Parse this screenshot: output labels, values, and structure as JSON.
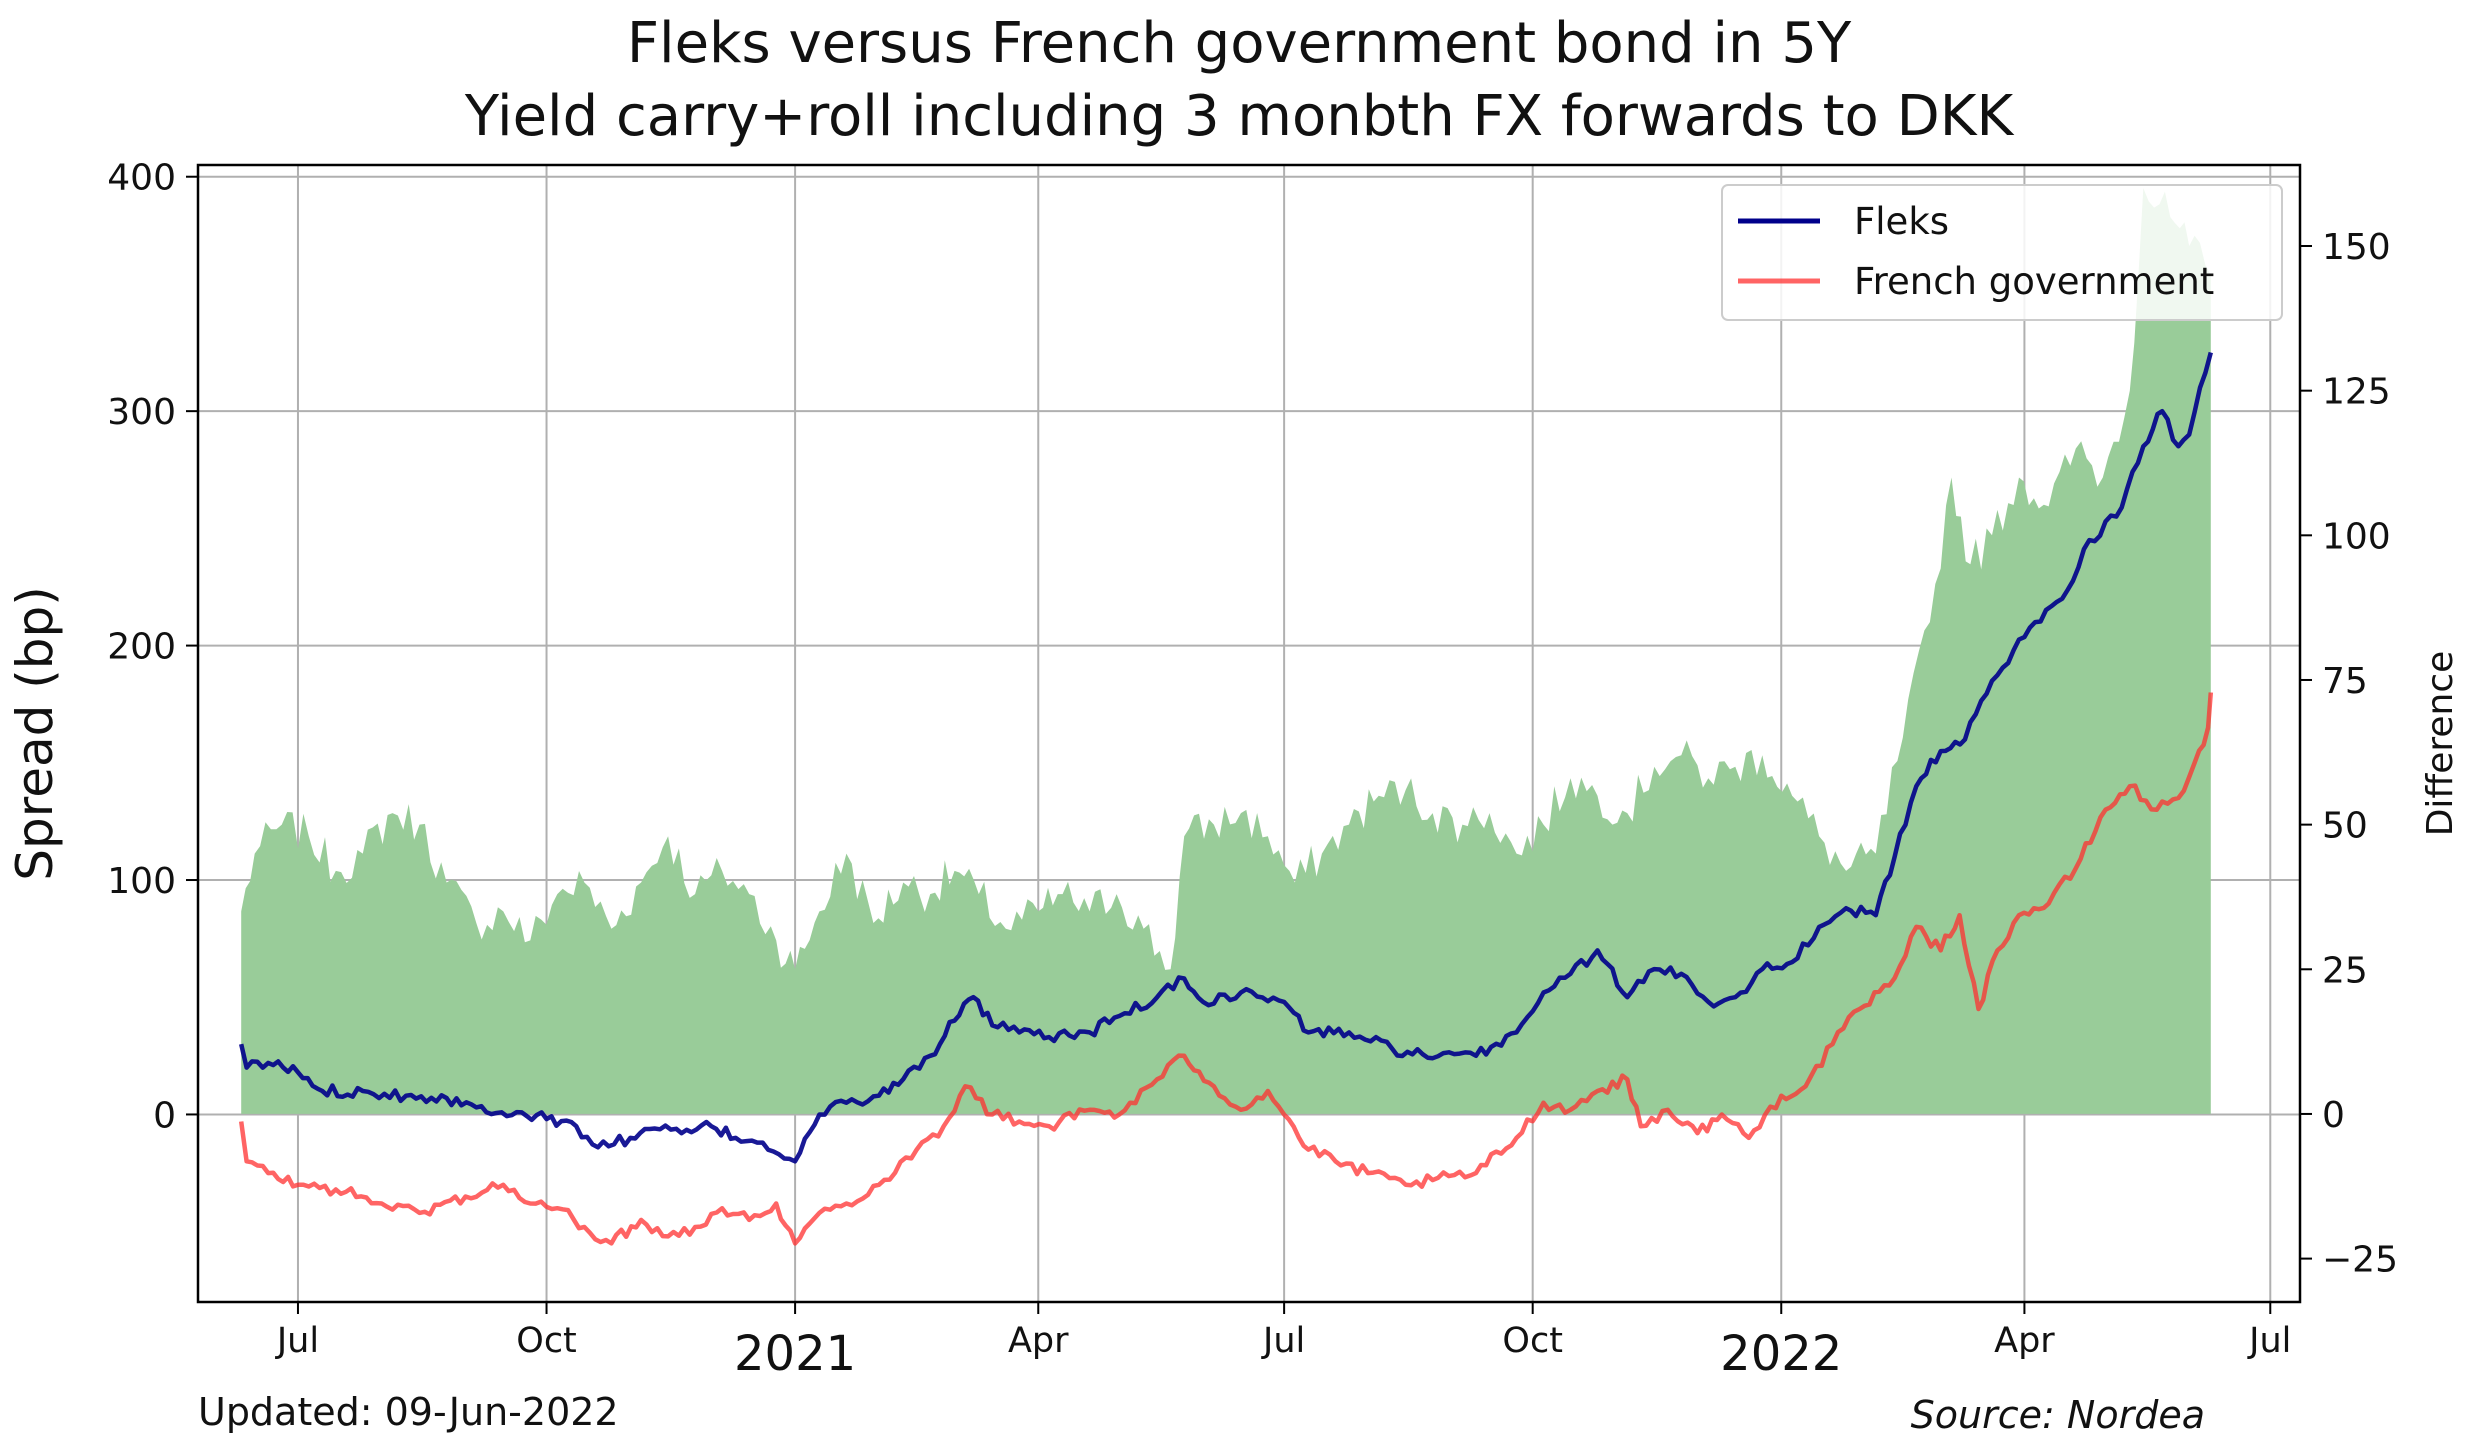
{
  "chart_data": {
    "type": "line",
    "title_line1": "Fleks versus French government bond in 5Y",
    "title_line2": "Yield carry+roll including 3 monbth FX forwards to DKK",
    "ylabel": "Spread (bp)",
    "y2label": "Difference",
    "ylim": [
      -80,
      405
    ],
    "y2lim": [
      -32.5,
      164
    ],
    "y_ticks": [
      0,
      100,
      200,
      300,
      400
    ],
    "y2_ticks": [
      -25,
      0,
      25,
      50,
      75,
      100,
      125,
      150
    ],
    "x_range": [
      "2020-05-25",
      "2022-07-12"
    ],
    "x_ticks": [
      {
        "date": "2020-07-01",
        "label": "Jul",
        "major": false
      },
      {
        "date": "2020-10-01",
        "label": "Oct",
        "major": false
      },
      {
        "date": "2021-01-01",
        "label": "2021",
        "major": true
      },
      {
        "date": "2021-04-01",
        "label": "Apr",
        "major": false
      },
      {
        "date": "2021-07-01",
        "label": "Jul",
        "major": false
      },
      {
        "date": "2021-10-01",
        "label": "Oct",
        "major": false
      },
      {
        "date": "2022-01-01",
        "label": "2022",
        "major": true
      },
      {
        "date": "2022-04-01",
        "label": "Apr",
        "major": false
      },
      {
        "date": "2022-07-01",
        "label": "Jul",
        "major": false
      }
    ],
    "grid": true,
    "legend_position": "top-right",
    "series": [
      {
        "name": "Fleks",
        "color": "#00008b",
        "axis": "left",
        "points": [
          [
            "2020-06-10",
            30
          ],
          [
            "2020-06-12",
            20
          ],
          [
            "2020-06-20",
            22
          ],
          [
            "2020-07-01",
            18
          ],
          [
            "2020-07-10",
            10
          ],
          [
            "2020-07-25",
            10
          ],
          [
            "2020-08-10",
            8
          ],
          [
            "2020-08-25",
            7
          ],
          [
            "2020-09-05",
            3
          ],
          [
            "2020-09-20",
            1
          ],
          [
            "2020-10-01",
            -2
          ],
          [
            "2020-10-12",
            -5
          ],
          [
            "2020-10-20",
            -14
          ],
          [
            "2020-11-01",
            -10
          ],
          [
            "2020-11-10",
            -6
          ],
          [
            "2020-11-20",
            -8
          ],
          [
            "2020-12-01",
            -5
          ],
          [
            "2020-12-10",
            -10
          ],
          [
            "2020-12-20",
            -12
          ],
          [
            "2021-01-01",
            -20
          ],
          [
            "2021-01-10",
            0
          ],
          [
            "2021-01-20",
            5
          ],
          [
            "2021-02-01",
            8
          ],
          [
            "2021-02-10",
            15
          ],
          [
            "2021-02-20",
            25
          ],
          [
            "2021-03-01",
            40
          ],
          [
            "2021-03-08",
            50
          ],
          [
            "2021-03-15",
            38
          ],
          [
            "2021-03-25",
            35
          ],
          [
            "2021-04-05",
            33
          ],
          [
            "2021-04-20",
            35
          ],
          [
            "2021-05-01",
            42
          ],
          [
            "2021-05-15",
            50
          ],
          [
            "2021-05-25",
            58
          ],
          [
            "2021-06-01",
            48
          ],
          [
            "2021-06-15",
            52
          ],
          [
            "2021-07-01",
            48
          ],
          [
            "2021-07-10",
            35
          ],
          [
            "2021-07-25",
            35
          ],
          [
            "2021-08-10",
            28
          ],
          [
            "2021-08-25",
            24
          ],
          [
            "2021-09-10",
            25
          ],
          [
            "2021-09-25",
            35
          ],
          [
            "2021-10-05",
            52
          ],
          [
            "2021-10-15",
            60
          ],
          [
            "2021-10-25",
            70
          ],
          [
            "2021-11-05",
            50
          ],
          [
            "2021-11-15",
            62
          ],
          [
            "2021-11-25",
            60
          ],
          [
            "2021-12-05",
            48
          ],
          [
            "2021-12-15",
            50
          ],
          [
            "2021-12-25",
            62
          ],
          [
            "2022-01-05",
            65
          ],
          [
            "2022-01-15",
            80
          ],
          [
            "2022-01-25",
            88
          ],
          [
            "2022-02-05",
            85
          ],
          [
            "2022-02-12",
            110
          ],
          [
            "2022-02-20",
            140
          ],
          [
            "2022-03-01",
            155
          ],
          [
            "2022-03-10",
            160
          ],
          [
            "2022-03-20",
            185
          ],
          [
            "2022-03-28",
            198
          ],
          [
            "2022-04-05",
            210
          ],
          [
            "2022-04-15",
            220
          ],
          [
            "2022-04-25",
            245
          ],
          [
            "2022-05-05",
            255
          ],
          [
            "2022-05-15",
            285
          ],
          [
            "2022-05-22",
            300
          ],
          [
            "2022-05-28",
            285
          ],
          [
            "2022-06-01",
            290
          ],
          [
            "2022-06-05",
            310
          ],
          [
            "2022-06-09",
            325
          ]
        ]
      },
      {
        "name": "French government",
        "color": "#ff3030",
        "axis": "left",
        "points": [
          [
            "2020-06-10",
            -3
          ],
          [
            "2020-06-12",
            -20
          ],
          [
            "2020-06-20",
            -25
          ],
          [
            "2020-07-01",
            -30
          ],
          [
            "2020-07-15",
            -32
          ],
          [
            "2020-08-01",
            -38
          ],
          [
            "2020-08-15",
            -42
          ],
          [
            "2020-09-01",
            -35
          ],
          [
            "2020-09-15",
            -30
          ],
          [
            "2020-09-25",
            -38
          ],
          [
            "2020-10-05",
            -40
          ],
          [
            "2020-10-15",
            -48
          ],
          [
            "2020-10-25",
            -55
          ],
          [
            "2020-11-05",
            -45
          ],
          [
            "2020-11-15",
            -52
          ],
          [
            "2020-11-25",
            -48
          ],
          [
            "2020-12-05",
            -40
          ],
          [
            "2020-12-15",
            -45
          ],
          [
            "2020-12-25",
            -38
          ],
          [
            "2021-01-01",
            -55
          ],
          [
            "2021-01-10",
            -42
          ],
          [
            "2021-01-20",
            -38
          ],
          [
            "2021-02-01",
            -30
          ],
          [
            "2021-02-15",
            -15
          ],
          [
            "2021-02-25",
            -5
          ],
          [
            "2021-03-05",
            12
          ],
          [
            "2021-03-15",
            0
          ],
          [
            "2021-03-25",
            -3
          ],
          [
            "2021-04-05",
            -5
          ],
          [
            "2021-04-20",
            2
          ],
          [
            "2021-05-01",
            0
          ],
          [
            "2021-05-15",
            15
          ],
          [
            "2021-05-25",
            25
          ],
          [
            "2021-06-05",
            12
          ],
          [
            "2021-06-15",
            2
          ],
          [
            "2021-06-25",
            10
          ],
          [
            "2021-07-01",
            0
          ],
          [
            "2021-07-10",
            -15
          ],
          [
            "2021-07-20",
            -20
          ],
          [
            "2021-08-01",
            -25
          ],
          [
            "2021-08-15",
            -30
          ],
          [
            "2021-08-25",
            -28
          ],
          [
            "2021-09-10",
            -25
          ],
          [
            "2021-09-25",
            -10
          ],
          [
            "2021-10-05",
            5
          ],
          [
            "2021-10-15",
            2
          ],
          [
            "2021-10-25",
            10
          ],
          [
            "2021-11-05",
            15
          ],
          [
            "2021-11-10",
            -5
          ],
          [
            "2021-11-20",
            2
          ],
          [
            "2021-12-01",
            -8
          ],
          [
            "2021-12-10",
            0
          ],
          [
            "2021-12-20",
            -10
          ],
          [
            "2022-01-01",
            8
          ],
          [
            "2022-01-10",
            12
          ],
          [
            "2022-01-20",
            30
          ],
          [
            "2022-01-30",
            45
          ],
          [
            "2022-02-10",
            55
          ],
          [
            "2022-02-20",
            80
          ],
          [
            "2022-03-01",
            70
          ],
          [
            "2022-03-08",
            85
          ],
          [
            "2022-03-15",
            45
          ],
          [
            "2022-03-22",
            70
          ],
          [
            "2022-03-30",
            85
          ],
          [
            "2022-04-10",
            90
          ],
          [
            "2022-04-20",
            105
          ],
          [
            "2022-05-01",
            130
          ],
          [
            "2022-05-10",
            140
          ],
          [
            "2022-05-20",
            130
          ],
          [
            "2022-05-28",
            135
          ],
          [
            "2022-06-03",
            150
          ],
          [
            "2022-06-08",
            165
          ],
          [
            "2022-06-09",
            180
          ]
        ]
      },
      {
        "name": "Difference",
        "color": "#99cc99",
        "axis": "right",
        "type": "area",
        "points": [
          [
            "2020-06-10",
            35
          ],
          [
            "2020-06-15",
            45
          ],
          [
            "2020-06-25",
            50
          ],
          [
            "2020-07-05",
            48
          ],
          [
            "2020-07-15",
            42
          ],
          [
            "2020-07-25",
            45
          ],
          [
            "2020-08-05",
            52
          ],
          [
            "2020-08-15",
            50
          ],
          [
            "2020-08-25",
            40
          ],
          [
            "2020-09-05",
            33
          ],
          [
            "2020-09-15",
            35
          ],
          [
            "2020-09-25",
            30
          ],
          [
            "2020-10-05",
            38
          ],
          [
            "2020-10-15",
            40
          ],
          [
            "2020-10-25",
            32
          ],
          [
            "2020-11-05",
            40
          ],
          [
            "2020-11-15",
            48
          ],
          [
            "2020-11-25",
            38
          ],
          [
            "2020-12-05",
            42
          ],
          [
            "2020-12-15",
            38
          ],
          [
            "2020-12-25",
            30
          ],
          [
            "2021-01-01",
            25
          ],
          [
            "2021-01-10",
            35
          ],
          [
            "2021-01-20",
            45
          ],
          [
            "2021-01-30",
            33
          ],
          [
            "2021-02-10",
            40
          ],
          [
            "2021-02-20",
            38
          ],
          [
            "2021-03-01",
            42
          ],
          [
            "2021-03-10",
            38
          ],
          [
            "2021-03-20",
            32
          ],
          [
            "2021-04-01",
            35
          ],
          [
            "2021-04-10",
            38
          ],
          [
            "2021-04-20",
            35
          ],
          [
            "2021-04-30",
            38
          ],
          [
            "2021-05-10",
            32
          ],
          [
            "2021-05-20",
            25
          ],
          [
            "2021-05-25",
            48
          ],
          [
            "2021-06-05",
            50
          ],
          [
            "2021-06-15",
            52
          ],
          [
            "2021-06-25",
            48
          ],
          [
            "2021-07-05",
            40
          ],
          [
            "2021-07-15",
            45
          ],
          [
            "2021-07-25",
            50
          ],
          [
            "2021-08-05",
            55
          ],
          [
            "2021-08-15",
            56
          ],
          [
            "2021-08-25",
            52
          ],
          [
            "2021-09-05",
            50
          ],
          [
            "2021-09-15",
            52
          ],
          [
            "2021-09-25",
            45
          ],
          [
            "2021-10-05",
            50
          ],
          [
            "2021-10-15",
            58
          ],
          [
            "2021-10-25",
            55
          ],
          [
            "2021-11-05",
            52
          ],
          [
            "2021-11-15",
            60
          ],
          [
            "2021-11-25",
            62
          ],
          [
            "2021-12-05",
            58
          ],
          [
            "2021-12-15",
            60
          ],
          [
            "2021-12-25",
            62
          ],
          [
            "2022-01-05",
            55
          ],
          [
            "2022-01-15",
            48
          ],
          [
            "2022-01-25",
            42
          ],
          [
            "2022-02-05",
            45
          ],
          [
            "2022-02-15",
            65
          ],
          [
            "2022-02-25",
            85
          ],
          [
            "2022-03-05",
            110
          ],
          [
            "2022-03-12",
            95
          ],
          [
            "2022-03-20",
            100
          ],
          [
            "2022-03-30",
            110
          ],
          [
            "2022-04-10",
            105
          ],
          [
            "2022-04-20",
            115
          ],
          [
            "2022-04-30",
            110
          ],
          [
            "2022-05-10",
            125
          ],
          [
            "2022-05-15",
            160
          ],
          [
            "2022-05-25",
            155
          ],
          [
            "2022-06-01",
            150
          ],
          [
            "2022-06-09",
            145
          ]
        ]
      }
    ]
  },
  "footer": {
    "updated": "Updated: 09-Jun-2022",
    "source": "Source: Nordea"
  }
}
